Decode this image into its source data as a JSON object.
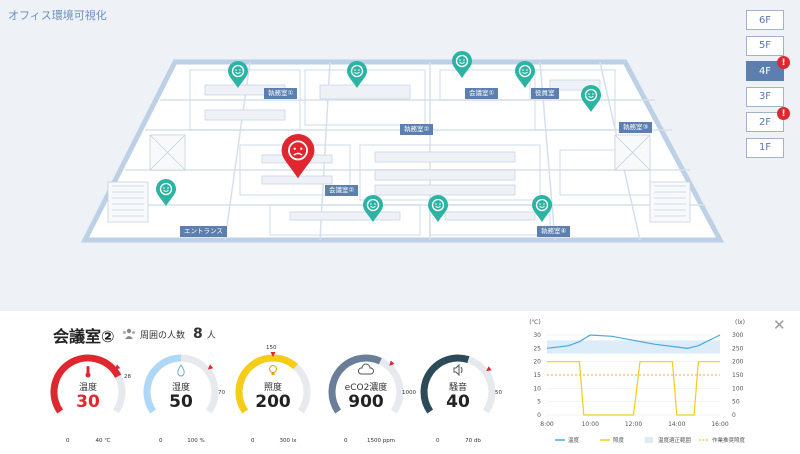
{
  "app": {
    "title": "オフィス環境可視化"
  },
  "floors": [
    {
      "label": "6F",
      "active": false,
      "alert": false
    },
    {
      "label": "5F",
      "active": false,
      "alert": false
    },
    {
      "label": "4F",
      "active": true,
      "alert": true
    },
    {
      "label": "3F",
      "active": false,
      "alert": false
    },
    {
      "label": "2F",
      "active": false,
      "alert": true
    },
    {
      "label": "1F",
      "active": false,
      "alert": false
    }
  ],
  "alert_mark": "!",
  "map": {
    "rooms": [
      {
        "label": "執務室①"
      },
      {
        "label": "会議室①"
      },
      {
        "label": "役員室"
      },
      {
        "label": "執務室②"
      },
      {
        "label": "執務室③"
      },
      {
        "label": "会議室②"
      },
      {
        "label": "エントランス"
      },
      {
        "label": "執務室④"
      }
    ],
    "pins": [
      {
        "status": "good"
      },
      {
        "status": "good"
      },
      {
        "status": "good"
      },
      {
        "status": "good"
      },
      {
        "status": "good"
      },
      {
        "status": "good"
      },
      {
        "status": "good"
      },
      {
        "status": "good"
      },
      {
        "status": "good"
      },
      {
        "status": "alert"
      }
    ],
    "colors": {
      "good": "#2cb3a4",
      "alert": "#e0262f"
    }
  },
  "detail": {
    "room_name": "会議室②",
    "people_label": "周囲の人数",
    "people_count": "8",
    "people_unit": "人",
    "gauges": [
      {
        "label": "温度",
        "value": "30",
        "min": "0",
        "max": "40 ℃",
        "threshold": "28",
        "fraction": 0.75,
        "threshold_fraction": 0.7,
        "color": "#e0262f",
        "alert": true,
        "icon": "thermometer-icon"
      },
      {
        "label": "湿度",
        "value": "50",
        "min": "0",
        "max": "100 %",
        "threshold": "70",
        "fraction": 0.5,
        "threshold_fraction": 0.7,
        "color": "#aed8f5",
        "alert": false,
        "icon": "droplet-icon"
      },
      {
        "label": "照度",
        "value": "200",
        "min": "0",
        "max": "300 lx",
        "threshold": "150",
        "fraction": 0.667,
        "threshold_fraction": 0.5,
        "color": "#f5cc16",
        "alert": false,
        "icon": "lightbulb-icon"
      },
      {
        "label": "eCO2濃度",
        "value": "900",
        "min": "0",
        "max": "1500 ppm",
        "threshold": "1000",
        "fraction": 0.6,
        "threshold_fraction": 0.667,
        "color": "#6b7e99",
        "alert": false,
        "icon": "cloud-icon"
      },
      {
        "label": "騒音",
        "value": "40",
        "min": "0",
        "max": "70 db",
        "threshold": "50",
        "fraction": 0.571,
        "threshold_fraction": 0.714,
        "color": "#2c4a58",
        "alert": false,
        "icon": "speaker-icon"
      }
    ]
  },
  "chart_data": {
    "type": "line",
    "left_unit": "(℃)",
    "right_unit": "(lx)",
    "x": [
      "8:00",
      "10:00",
      "12:00",
      "14:00",
      "16:00"
    ],
    "x_values": [
      8,
      10,
      12,
      14,
      16
    ],
    "y_left_ticks": [
      "0",
      "5",
      "10",
      "15",
      "20",
      "25",
      "30"
    ],
    "y_right_ticks": [
      "0",
      "50",
      "100",
      "150",
      "200",
      "250",
      "300"
    ],
    "ylim_left": [
      0,
      30
    ],
    "ylim_right": [
      0,
      300
    ],
    "comfort_band": [
      23,
      28
    ],
    "work_recommended_lux": 150,
    "series": [
      {
        "name": "温度",
        "axis": "left",
        "color": "#4aa8e0",
        "points": [
          [
            8,
            25
          ],
          [
            9,
            26
          ],
          [
            9.5,
            27.5
          ],
          [
            10,
            30
          ],
          [
            11,
            29.5
          ],
          [
            12,
            28
          ],
          [
            13,
            26.5
          ],
          [
            14,
            25.5
          ],
          [
            14.5,
            25
          ],
          [
            15,
            26
          ],
          [
            16,
            30
          ]
        ]
      },
      {
        "name": "照度",
        "axis": "right",
        "color": "#f5cc16",
        "points": [
          [
            8,
            200
          ],
          [
            9.5,
            200
          ],
          [
            9.7,
            0
          ],
          [
            12,
            0
          ],
          [
            12.3,
            200
          ],
          [
            13.8,
            200
          ],
          [
            14,
            0
          ],
          [
            14.8,
            0
          ],
          [
            15,
            200
          ],
          [
            16,
            200
          ]
        ]
      }
    ],
    "legend": [
      "温度",
      "照度",
      "温度適正範囲",
      "作業推奨照度"
    ],
    "colors": {
      "temp": "#4aa8e0",
      "lux": "#f5cc16",
      "band": "#dcecf8",
      "work": "#f5b316"
    }
  }
}
